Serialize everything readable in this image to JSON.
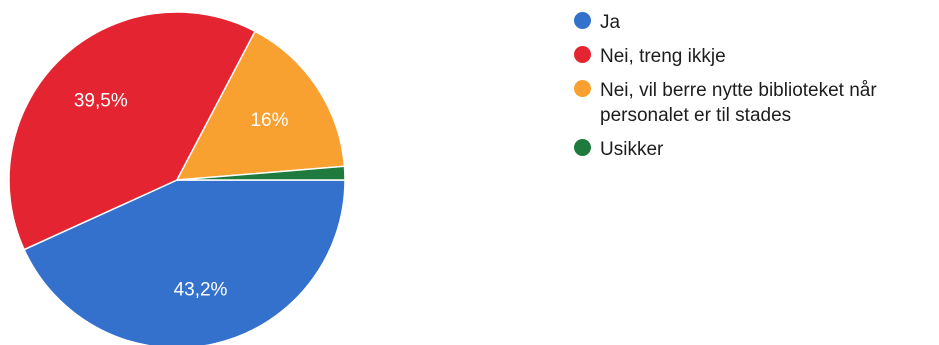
{
  "chart_data": {
    "type": "pie",
    "legend_position": "right",
    "slices": [
      {
        "label": "Ja",
        "value": 43.2,
        "display": "43,2%",
        "color": "#3371cd"
      },
      {
        "label": "Nei, treng ikkje",
        "value": 39.5,
        "display": "39,5%",
        "color": "#e42431"
      },
      {
        "label": "Nei, vil berre nytte biblioteket når personalet er til stades",
        "value": 16,
        "display": "16%",
        "color": "#f8a030"
      },
      {
        "label": "Usikker",
        "value": 1.3,
        "display": "",
        "color": "#1e7b3d"
      }
    ]
  }
}
